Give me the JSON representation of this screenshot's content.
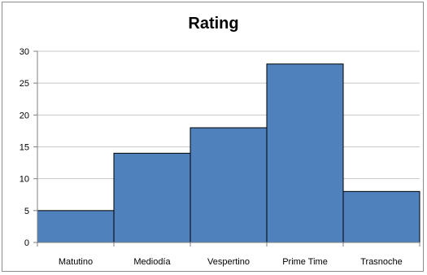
{
  "chart_data": {
    "type": "bar",
    "title": "Rating",
    "categories": [
      "Matutino",
      "Mediodía",
      "Vespertino",
      "Prime Time",
      "Trasnoche"
    ],
    "values": [
      5,
      14,
      18,
      28,
      8
    ],
    "xlabel": "",
    "ylabel": "",
    "ylim": [
      0,
      30
    ],
    "yticks": [
      0,
      5,
      10,
      15,
      20,
      25,
      30
    ],
    "grid": true,
    "legend": "none",
    "bar_color": "#4f81bd",
    "bar_edge_color": "#000000"
  }
}
